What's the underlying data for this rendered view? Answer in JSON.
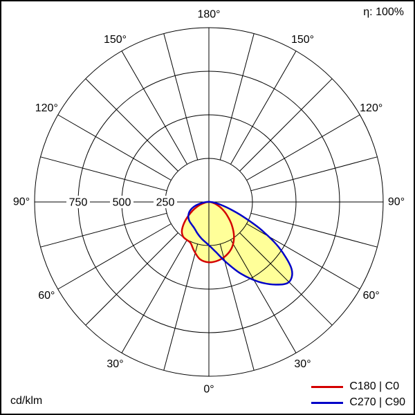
{
  "chart_data": {
    "type": "polar",
    "unit": "cd/klm",
    "corner_labels": {
      "top_right": "η: 100%",
      "bottom_left": "cd/klm"
    },
    "gamma_zero": "bottom",
    "max_value": 1000,
    "rings": [
      {
        "value": 250,
        "label": "250"
      },
      {
        "value": 500,
        "label": "500"
      },
      {
        "value": 750,
        "label": "750"
      },
      {
        "value": 1000,
        "label": ""
      }
    ],
    "spoke_step_deg": 15,
    "angle_label_step_deg": 30,
    "angle_labels": [
      "0°",
      "30°",
      "60°",
      "90°",
      "120°",
      "150°",
      "180°"
    ],
    "grid": true,
    "grid_color": "#000000",
    "fill_color": "#ffff99",
    "legend_position": "bottom-right",
    "series": [
      {
        "name": "C180 | C0",
        "color": "#d40000",
        "points": [
          [
            -92,
            4
          ],
          [
            -82,
            18
          ],
          [
            -72,
            55
          ],
          [
            -62,
            105
          ],
          [
            -52,
            170
          ],
          [
            -44,
            222
          ],
          [
            -37,
            247
          ],
          [
            -30,
            252
          ],
          [
            -24,
            258
          ],
          [
            -17,
            292
          ],
          [
            -9,
            332
          ],
          [
            0,
            346
          ],
          [
            9,
            340
          ],
          [
            18,
            322
          ],
          [
            27,
            292
          ],
          [
            36,
            245
          ],
          [
            45,
            185
          ],
          [
            54,
            128
          ],
          [
            63,
            82
          ],
          [
            72,
            45
          ],
          [
            81,
            18
          ],
          [
            92,
            4
          ]
        ]
      },
      {
        "name": "C270 | C90",
        "color": "#0000c8",
        "points": [
          [
            -92,
            6
          ],
          [
            -83,
            35
          ],
          [
            -74,
            82
          ],
          [
            -65,
            120
          ],
          [
            -56,
            142
          ],
          [
            -47,
            155
          ],
          [
            -38,
            162
          ],
          [
            -29,
            172
          ],
          [
            -20,
            192
          ],
          [
            -11,
            215
          ],
          [
            0,
            248
          ],
          [
            8,
            290
          ],
          [
            16,
            360
          ],
          [
            24,
            450
          ],
          [
            32,
            540
          ],
          [
            39,
            610
          ],
          [
            45,
            650
          ],
          [
            51,
            610
          ],
          [
            57,
            480
          ],
          [
            62,
            340
          ],
          [
            67,
            210
          ],
          [
            72,
            120
          ],
          [
            78,
            60
          ],
          [
            85,
            25
          ],
          [
            92,
            6
          ]
        ]
      }
    ]
  }
}
